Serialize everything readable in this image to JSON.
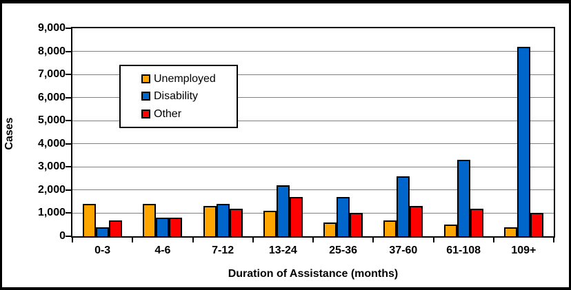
{
  "chart_data": {
    "type": "bar",
    "title": "",
    "xlabel": "Duration of Assistance (months)",
    "ylabel": "Cases",
    "categories": [
      "0-3",
      "4-6",
      "7-12",
      "13-24",
      "25-36",
      "37-60",
      "61-108",
      "109+"
    ],
    "series": [
      {
        "name": "Unemployed",
        "color": "#FFA500",
        "values": [
          1400,
          1400,
          1300,
          1100,
          600,
          700,
          500,
          400
        ]
      },
      {
        "name": "Disability",
        "color": "#0066CC",
        "values": [
          400,
          800,
          1400,
          2200,
          1700,
          2600,
          3300,
          8200
        ]
      },
      {
        "name": "Other",
        "color": "#FF0000",
        "values": [
          700,
          800,
          1200,
          1700,
          1000,
          1300,
          1200,
          1000
        ]
      }
    ],
    "ylim": [
      0,
      9000
    ],
    "ytick_step": 1000,
    "ytick_labels": [
      "0",
      "1,000",
      "2,000",
      "3,000",
      "4,000",
      "5,000",
      "6,000",
      "7,000",
      "8,000",
      "9,000"
    ],
    "grid": true,
    "legend_position": "inside-upper-left"
  }
}
